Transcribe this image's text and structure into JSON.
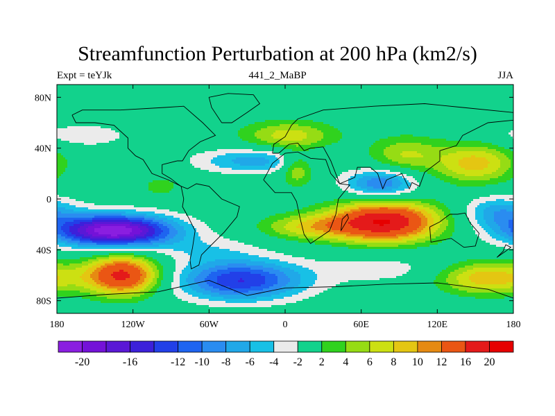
{
  "chart_data": {
    "type": "heatmap",
    "title": "Streamfunction Perturbation at 200 hPa (km2/s)",
    "subtitle_left": "Expt = teYJk",
    "subtitle_center": "441_2_MaBP",
    "subtitle_right": "JJA",
    "xlabel": "",
    "ylabel": "",
    "xlim": [
      -180,
      180
    ],
    "ylim": [
      -90,
      90
    ],
    "x_ticks": [
      {
        "value": -180,
        "label": "180"
      },
      {
        "value": -120,
        "label": "120W"
      },
      {
        "value": -60,
        "label": "60W"
      },
      {
        "value": 0,
        "label": "0"
      },
      {
        "value": 60,
        "label": "60E"
      },
      {
        "value": 120,
        "label": "120E"
      },
      {
        "value": 180,
        "label": "180"
      }
    ],
    "y_ticks": [
      {
        "value": 80,
        "label": "80N"
      },
      {
        "value": 40,
        "label": "40N"
      },
      {
        "value": 0,
        "label": "0"
      },
      {
        "value": -40,
        "label": "40S"
      },
      {
        "value": -80,
        "label": "80S"
      }
    ],
    "colorbar": {
      "levels": [
        -20,
        -18,
        -16,
        -14,
        -12,
        -10,
        -8,
        -6,
        -4,
        -2,
        2,
        4,
        6,
        8,
        10,
        12,
        16,
        20
      ],
      "labels": [
        {
          "level": -20,
          "text": "-20"
        },
        {
          "level": -16,
          "text": "-16"
        },
        {
          "level": -12,
          "text": "-12"
        },
        {
          "level": -10,
          "text": "-10"
        },
        {
          "level": -8,
          "text": "-8"
        },
        {
          "level": -6,
          "text": "-6"
        },
        {
          "level": -4,
          "text": "-4"
        },
        {
          "level": -2,
          "text": "-2"
        },
        {
          "level": 2,
          "text": "2"
        },
        {
          "level": 4,
          "text": "4"
        },
        {
          "level": 6,
          "text": "6"
        },
        {
          "level": 8,
          "text": "8"
        },
        {
          "level": 10,
          "text": "10"
        },
        {
          "level": 12,
          "text": "12"
        },
        {
          "level": 16,
          "text": "16"
        },
        {
          "level": 20,
          "text": "20"
        }
      ],
      "colors": [
        "#8a1ee0",
        "#7412d8",
        "#5a18d6",
        "#3c20da",
        "#2240e8",
        "#1e64f0",
        "#2a8cf0",
        "#20a8e8",
        "#18c0e6",
        "#ebebeb",
        "#12d28c",
        "#30d21e",
        "#96dc14",
        "#cce012",
        "#e4c612",
        "#e68a12",
        "#ea5614",
        "#e41a1a",
        "#e60000"
      ]
    },
    "features": [
      {
        "name": "tropical-pacific-low",
        "lon": -135,
        "lat": -25,
        "sx": 34,
        "sy": 9,
        "amp": -22
      },
      {
        "name": "south-pacific-high",
        "lon": -128,
        "lat": -60,
        "sx": 20,
        "sy": 11,
        "amp": 17
      },
      {
        "name": "southern-ocean-low",
        "lon": -35,
        "lat": -64,
        "sx": 35,
        "sy": 11,
        "amp": -14
      },
      {
        "name": "arabian-sea-high",
        "lon": 78,
        "lat": -18,
        "sx": 30,
        "sy": 11,
        "amp": 20
      },
      {
        "name": "west-atlantic-high",
        "lon": 18,
        "lat": -22,
        "sx": 26,
        "sy": 7,
        "amp": 7
      },
      {
        "name": "tibet-low",
        "lon": 75,
        "lat": 12,
        "sx": 20,
        "sy": 8,
        "amp": -10
      },
      {
        "name": "north-atlantic-low",
        "lon": -25,
        "lat": 30,
        "sx": 32,
        "sy": 7,
        "amp": -7
      },
      {
        "name": "europe-high",
        "lon": 3,
        "lat": 50,
        "sx": 26,
        "sy": 8,
        "amp": 7
      },
      {
        "name": "mid-east-high",
        "lon": 10,
        "lat": 24,
        "sx": 9,
        "sy": 9,
        "amp": 7
      },
      {
        "name": "central-asia-high",
        "lon": 95,
        "lat": 35,
        "sx": 20,
        "sy": 10,
        "amp": 6
      },
      {
        "name": "east-asia-high",
        "lon": 150,
        "lat": 28,
        "sx": 22,
        "sy": 11,
        "amp": 9
      },
      {
        "name": "pacific-west-low",
        "lon": 168,
        "lat": -10,
        "sx": 20,
        "sy": 9,
        "amp": -7
      },
      {
        "name": "south-indian-high",
        "lon": 160,
        "lat": -62,
        "sx": 28,
        "sy": 9,
        "amp": 10
      },
      {
        "name": "north-pacific-low",
        "lon": -160,
        "lat": 50,
        "sx": 28,
        "sy": 7,
        "amp": -3.5
      },
      {
        "name": "gulf-high",
        "lon": -98,
        "lat": 10,
        "sx": 10,
        "sy": 5,
        "amp": 3.5
      },
      {
        "name": "indian-south-low",
        "lon": 80,
        "lat": -55,
        "sx": 40,
        "sy": 9,
        "amp": -3
      },
      {
        "name": "pacific-east-low",
        "lon": -60,
        "lat": -40,
        "sx": 30,
        "sy": 8,
        "amp": -3
      }
    ],
    "coastlines": [
      {
        "name": "south-america",
        "points": [
          [
            -82,
            10
          ],
          [
            -77,
            8
          ],
          [
            -70,
            12
          ],
          [
            -60,
            10
          ],
          [
            -50,
            0
          ],
          [
            -36,
            -6
          ],
          [
            -38,
            -14
          ],
          [
            -48,
            -26
          ],
          [
            -58,
            -36
          ],
          [
            -66,
            -44
          ],
          [
            -68,
            -52
          ],
          [
            -74,
            -55
          ],
          [
            -75,
            -48
          ],
          [
            -73,
            -38
          ],
          [
            -71,
            -25
          ],
          [
            -76,
            -15
          ],
          [
            -81,
            -6
          ],
          [
            -80,
            0
          ],
          [
            -82,
            10
          ]
        ]
      },
      {
        "name": "africa",
        "points": [
          [
            -17,
            15
          ],
          [
            -10,
            28
          ],
          [
            0,
            36
          ],
          [
            10,
            37
          ],
          [
            20,
            32
          ],
          [
            32,
            31
          ],
          [
            36,
            20
          ],
          [
            43,
            12
          ],
          [
            51,
            11
          ],
          [
            42,
            0
          ],
          [
            40,
            -12
          ],
          [
            35,
            -25
          ],
          [
            20,
            -35
          ],
          [
            15,
            -28
          ],
          [
            12,
            -16
          ],
          [
            9,
            -2
          ],
          [
            5,
            5
          ],
          [
            -8,
            5
          ],
          [
            -17,
            15
          ]
        ]
      },
      {
        "name": "north-america",
        "points": [
          [
            -168,
            66
          ],
          [
            -160,
            70
          ],
          [
            -130,
            70
          ],
          [
            -95,
            72
          ],
          [
            -80,
            73
          ],
          [
            -65,
            60
          ],
          [
            -55,
            50
          ],
          [
            -67,
            45
          ],
          [
            -76,
            38
          ],
          [
            -81,
            30
          ],
          [
            -85,
            30
          ],
          [
            -97,
            27
          ],
          [
            -97,
            20
          ],
          [
            -90,
            16
          ],
          [
            -85,
            12
          ],
          [
            -82,
            10
          ],
          [
            -92,
            15
          ],
          [
            -105,
            20
          ],
          [
            -112,
            31
          ],
          [
            -118,
            34
          ],
          [
            -124,
            40
          ],
          [
            -124,
            48
          ],
          [
            -135,
            58
          ],
          [
            -150,
            60
          ],
          [
            -165,
            60
          ],
          [
            -168,
            66
          ]
        ]
      },
      {
        "name": "eurasia",
        "points": [
          [
            -10,
            36
          ],
          [
            -9,
            43
          ],
          [
            0,
            49
          ],
          [
            5,
            58
          ],
          [
            10,
            63
          ],
          [
            30,
            70
          ],
          [
            70,
            73
          ],
          [
            110,
            75
          ],
          [
            140,
            72
          ],
          [
            180,
            68
          ],
          [
            180,
            62
          ],
          [
            160,
            60
          ],
          [
            140,
            50
          ],
          [
            135,
            42
          ],
          [
            122,
            38
          ],
          [
            122,
            30
          ],
          [
            110,
            21
          ],
          [
            106,
            10
          ],
          [
            100,
            13
          ],
          [
            98,
            8
          ],
          [
            92,
            20
          ],
          [
            80,
            15
          ],
          [
            77,
            8
          ],
          [
            73,
            20
          ],
          [
            67,
            25
          ],
          [
            57,
            25
          ],
          [
            55,
            17
          ],
          [
            43,
            12
          ],
          [
            36,
            30
          ],
          [
            30,
            41
          ],
          [
            20,
            40
          ],
          [
            15,
            38
          ],
          [
            10,
            44
          ],
          [
            3,
            43
          ],
          [
            -5,
            36
          ],
          [
            -10,
            36
          ]
        ]
      },
      {
        "name": "australia",
        "points": [
          [
            114,
            -22
          ],
          [
            122,
            -18
          ],
          [
            130,
            -12
          ],
          [
            136,
            -12
          ],
          [
            142,
            -11
          ],
          [
            146,
            -19
          ],
          [
            153,
            -27
          ],
          [
            150,
            -37
          ],
          [
            141,
            -38
          ],
          [
            131,
            -31
          ],
          [
            115,
            -34
          ],
          [
            114,
            -22
          ]
        ]
      },
      {
        "name": "antarctica",
        "points": [
          [
            -180,
            -78
          ],
          [
            -140,
            -75
          ],
          [
            -100,
            -73
          ],
          [
            -60,
            -64
          ],
          [
            -30,
            -76
          ],
          [
            0,
            -70
          ],
          [
            40,
            -69
          ],
          [
            80,
            -67
          ],
          [
            120,
            -66
          ],
          [
            160,
            -71
          ],
          [
            180,
            -78
          ]
        ]
      },
      {
        "name": "greenland",
        "points": [
          [
            -50,
            60
          ],
          [
            -42,
            60
          ],
          [
            -30,
            68
          ],
          [
            -20,
            75
          ],
          [
            -25,
            82
          ],
          [
            -45,
            83
          ],
          [
            -60,
            80
          ],
          [
            -58,
            72
          ],
          [
            -50,
            60
          ]
        ]
      },
      {
        "name": "madagascar",
        "points": [
          [
            44,
            -25
          ],
          [
            50,
            -15
          ],
          [
            49,
            -12
          ],
          [
            45,
            -16
          ],
          [
            44,
            -25
          ]
        ]
      },
      {
        "name": "new-zealand",
        "points": [
          [
            167,
            -46
          ],
          [
            174,
            -41
          ],
          [
            178,
            -38
          ],
          [
            174,
            -36
          ],
          [
            172,
            -41
          ],
          [
            167,
            -46
          ]
        ]
      }
    ]
  }
}
